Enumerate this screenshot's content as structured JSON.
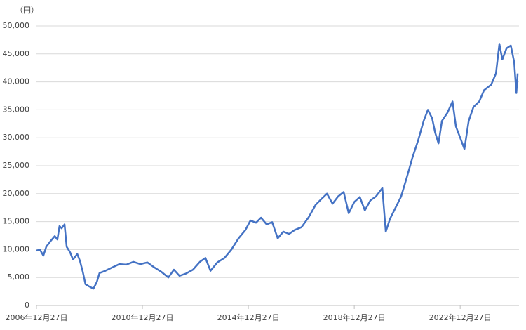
{
  "chart_data": {
    "type": "line",
    "y_unit_label": "（円）",
    "x": [
      2006.99,
      2007.12,
      2007.25,
      2007.36,
      2007.52,
      2007.68,
      2007.78,
      2007.86,
      2007.94,
      2008.05,
      2008.13,
      2008.26,
      2008.37,
      2008.53,
      2008.63,
      2008.74,
      2008.84,
      2008.98,
      2009.14,
      2009.27,
      2009.37,
      2009.59,
      2009.85,
      2010.12,
      2010.38,
      2010.65,
      2010.91,
      2011.18,
      2011.44,
      2011.71,
      2011.97,
      2012.18,
      2012.39,
      2012.63,
      2012.9,
      2013.16,
      2013.37,
      2013.56,
      2013.82,
      2014.09,
      2014.35,
      2014.62,
      2014.88,
      2015.07,
      2015.28,
      2015.47,
      2015.68,
      2015.89,
      2016.1,
      2016.31,
      2016.53,
      2016.74,
      2017.0,
      2017.27,
      2017.53,
      2017.74,
      2017.96,
      2018.17,
      2018.38,
      2018.59,
      2018.78,
      2018.99,
      2019.2,
      2019.39,
      2019.6,
      2019.81,
      2020.05,
      2020.18,
      2020.34,
      2020.55,
      2020.76,
      2020.98,
      2021.19,
      2021.4,
      2021.61,
      2021.77,
      2021.93,
      2022.04,
      2022.17,
      2022.3,
      2022.51,
      2022.7,
      2022.83,
      2022.99,
      2023.15,
      2023.31,
      2023.49,
      2023.71,
      2023.89,
      2024.16,
      2024.34,
      2024.47,
      2024.58,
      2024.74,
      2024.9,
      2025.03,
      2025.11,
      2025.16
    ],
    "series": [
      {
        "color": "#4472c4",
        "values": [
          9800,
          10000,
          8900,
          10500,
          11500,
          12400,
          11800,
          14200,
          13800,
          14500,
          10500,
          9500,
          8200,
          9200,
          8000,
          6000,
          3800,
          3400,
          3000,
          4200,
          5800,
          6200,
          6800,
          7400,
          7300,
          7800,
          7400,
          7700,
          6800,
          6000,
          5000,
          6400,
          5300,
          5700,
          6400,
          7800,
          8500,
          6200,
          7700,
          8500,
          10000,
          12000,
          13500,
          15200,
          14800,
          15700,
          14500,
          14900,
          12000,
          13200,
          12800,
          13500,
          14000,
          15800,
          18000,
          19000,
          20000,
          18200,
          19500,
          20300,
          16500,
          18500,
          19400,
          17000,
          18800,
          19500,
          21000,
          13200,
          15500,
          17500,
          19500,
          23000,
          26500,
          29500,
          33000,
          35000,
          33500,
          31000,
          29000,
          33000,
          34500,
          36500,
          32000,
          30000,
          28000,
          33000,
          35500,
          36500,
          38500,
          39500,
          41500,
          46800,
          44000,
          46000,
          46500,
          43500,
          38000,
          41500
        ]
      }
    ],
    "xlim": [
      2006.99,
      2025.21
    ],
    "xticks": [
      {
        "value": 2006.99,
        "label": "2006年12月27日"
      },
      {
        "value": 2010.99,
        "label": "2010年12月27日"
      },
      {
        "value": 2014.99,
        "label": "2014年12月27日"
      },
      {
        "value": 2018.99,
        "label": "2018年12月27日"
      },
      {
        "value": 2022.99,
        "label": "2022年12月27日"
      }
    ],
    "ylim": [
      0,
      50000
    ],
    "yticks": [
      0,
      {
        "value": 5000,
        "label": "5,000"
      },
      {
        "value": 10000,
        "label": "10,000"
      },
      {
        "value": 15000,
        "label": "15,000"
      },
      {
        "value": 20000,
        "label": "20,000"
      },
      {
        "value": 25000,
        "label": "25,000"
      },
      {
        "value": 30000,
        "label": "30,000"
      },
      {
        "value": 35000,
        "label": "35,000"
      },
      {
        "value": 40000,
        "label": "40,000"
      },
      {
        "value": 45000,
        "label": "45,000"
      },
      {
        "value": 50000,
        "label": "50,000"
      }
    ],
    "grid": true
  }
}
